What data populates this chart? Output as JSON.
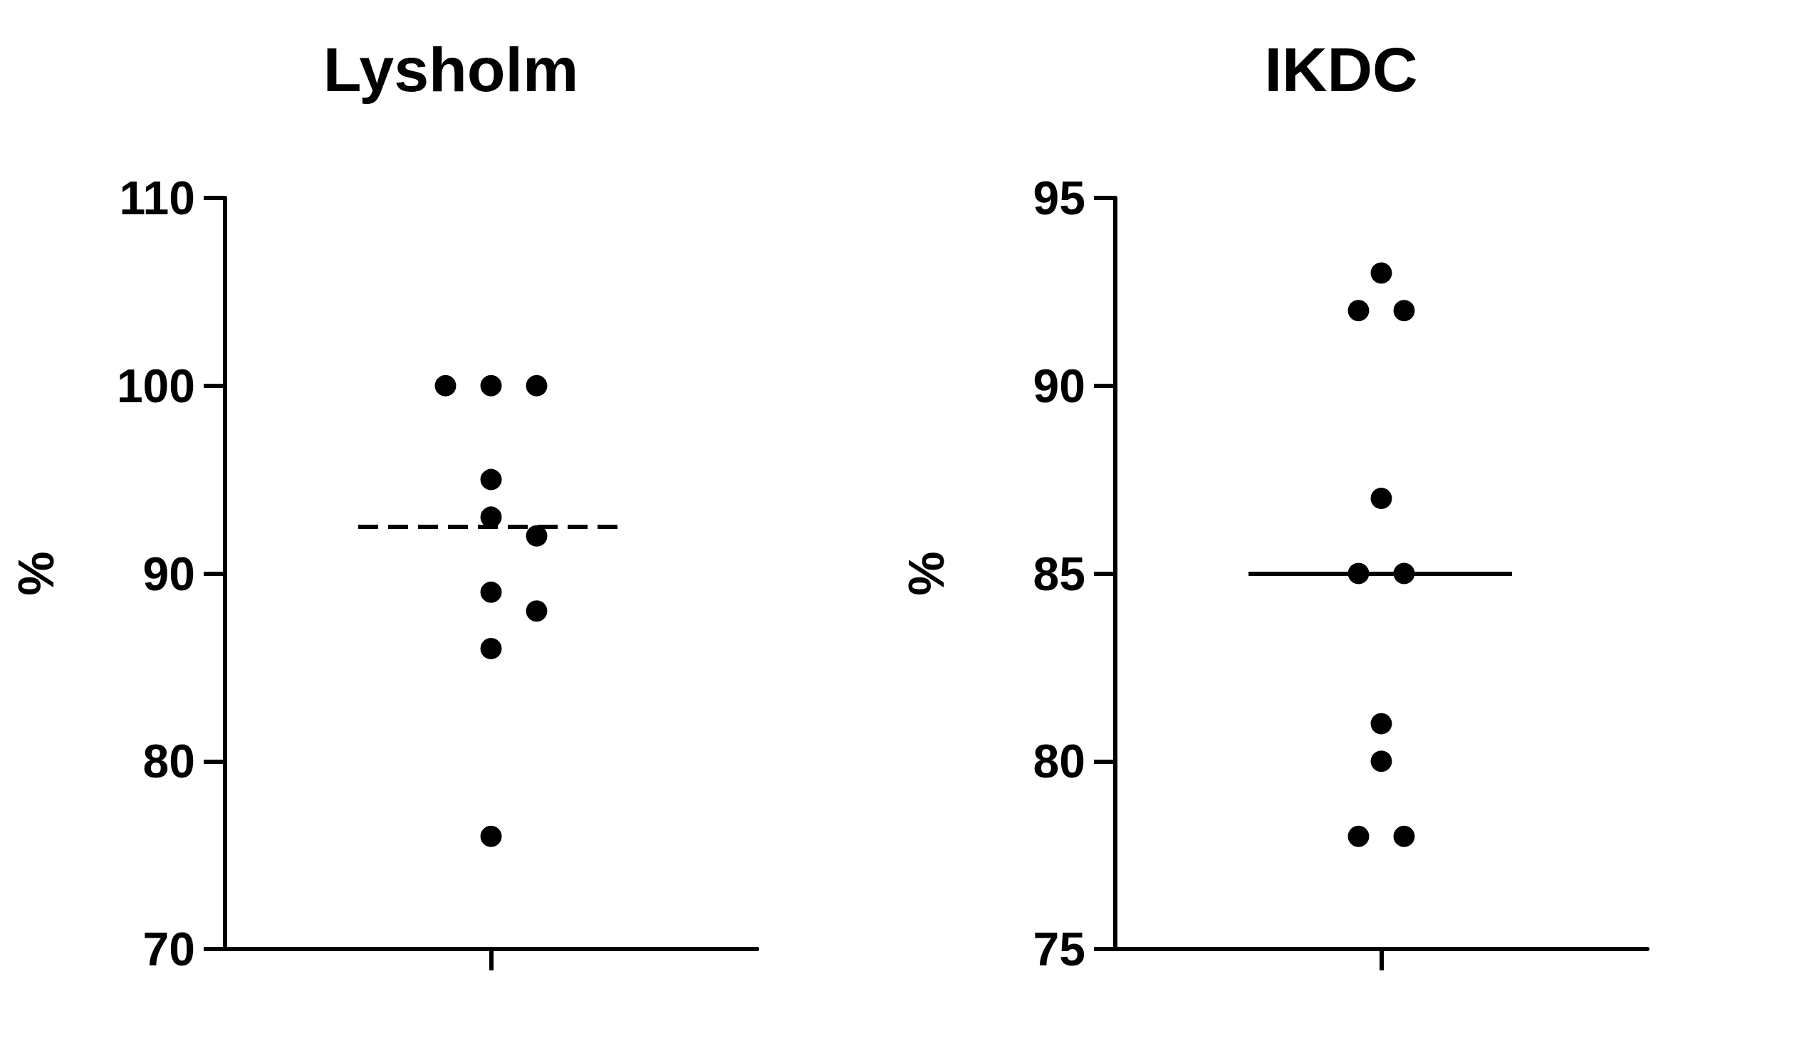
{
  "chart_data": [
    {
      "type": "scatter",
      "title": "Lysholm",
      "ylabel": "%",
      "categories": [
        null
      ],
      "tick_labels": "y",
      "grid": false,
      "marker": "circle",
      "ylim": [
        70,
        110
      ],
      "yticks": [
        70,
        80,
        90,
        100,
        110
      ],
      "series": [
        {
          "color": "#000000",
          "x": [
            null,
            null,
            null,
            null,
            null,
            null,
            null,
            null,
            null,
            null
          ],
          "values": [
            100,
            100,
            100,
            95,
            93,
            92,
            89,
            88,
            86,
            76
          ]
        }
      ],
      "ref_lines": [
        {
          "axis": "y",
          "value": 92.5,
          "color": "#000000",
          "line_style": "dashed"
        }
      ]
    },
    {
      "type": "scatter",
      "title": "IKDC",
      "ylabel": "%",
      "categories": [
        null
      ],
      "tick_labels": "y",
      "grid": false,
      "marker": "circle",
      "ylim": [
        75,
        95
      ],
      "yticks": [
        75,
        80,
        85,
        90,
        95
      ],
      "series": [
        {
          "color": "#000000",
          "x": [
            null,
            null,
            null,
            null,
            null,
            null,
            null,
            null,
            null,
            null
          ],
          "values": [
            93,
            92,
            92,
            87,
            85,
            85,
            81,
            80,
            78,
            78
          ]
        }
      ],
      "ref_lines": [
        {
          "axis": "y",
          "value": 85,
          "color": "#000000",
          "line_style": "solid"
        }
      ]
    }
  ]
}
